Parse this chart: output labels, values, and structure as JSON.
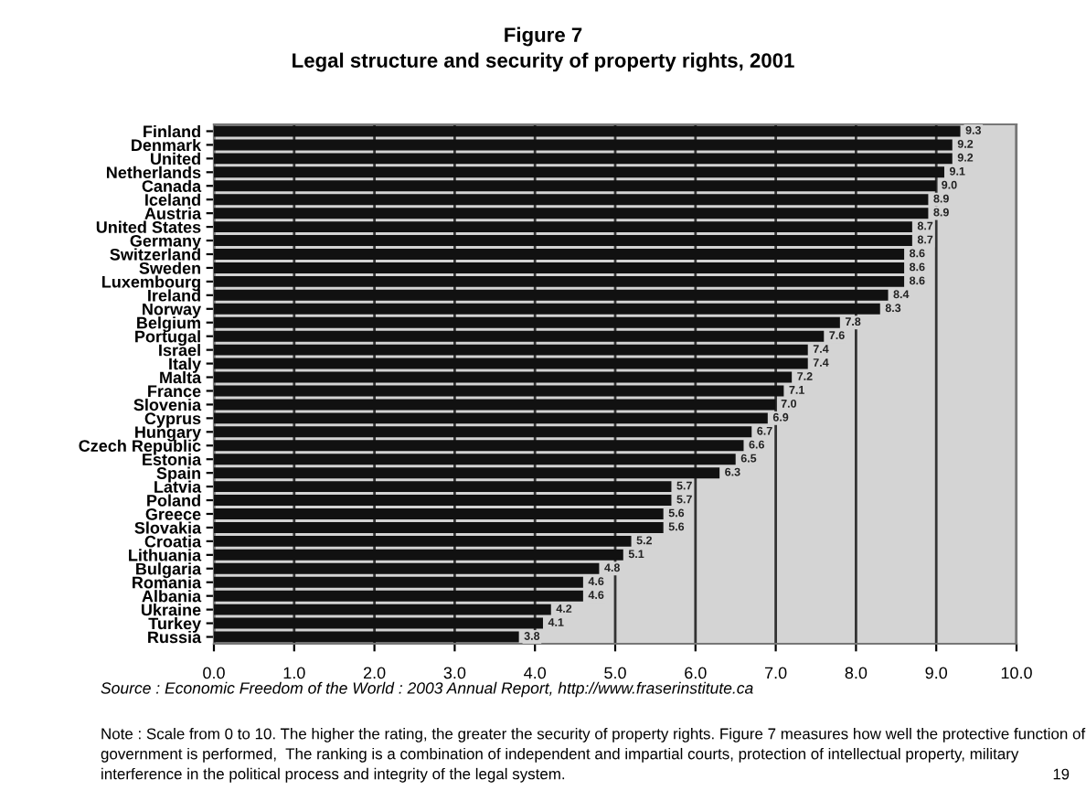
{
  "chart_data": {
    "type": "bar",
    "orientation": "horizontal",
    "title": "Figure 7",
    "subtitle": "Legal structure and security of property rights, 2001",
    "categories": [
      "Finland",
      "Denmark",
      "United",
      "Netherlands",
      "Canada",
      "Iceland",
      "Austria",
      "United States",
      "Germany",
      "Switzerland",
      "Sweden",
      "Luxembourg",
      "Ireland",
      "Norway",
      "Belgium",
      "Portugal",
      "Israel",
      "Italy",
      "Malta",
      "France",
      "Slovenia",
      "Cyprus",
      "Hungary",
      "Czech Republic",
      "Estonia",
      "Spain",
      "Latvia",
      "Poland",
      "Greece",
      "Slovakia",
      "Croatia",
      "Lithuania",
      "Bulgaria",
      "Romania",
      "Albania",
      "Ukraine",
      "Turkey",
      "Russia"
    ],
    "values": [
      9.3,
      9.2,
      9.2,
      9.1,
      9.0,
      8.9,
      8.9,
      8.7,
      8.7,
      8.6,
      8.6,
      8.6,
      8.4,
      8.3,
      7.8,
      7.6,
      7.4,
      7.4,
      7.2,
      7.1,
      7.0,
      6.9,
      6.7,
      6.6,
      6.5,
      6.3,
      5.7,
      5.7,
      5.6,
      5.6,
      5.2,
      5.1,
      4.8,
      4.6,
      4.6,
      4.2,
      4.1,
      3.8
    ],
    "value_labels": [
      "9.3",
      "9.2",
      "9.2",
      "9.1",
      "9.0",
      "8.9",
      "8.9",
      "8.7",
      "8.7",
      "8.6",
      "8.6",
      "8.6",
      "8.4",
      "8.3",
      "7.8",
      "7.6",
      "7.4",
      "7.4",
      "7.2",
      "7.1",
      "7.0",
      "6.9",
      "6.7",
      "6.6",
      "6.5",
      "6.3",
      "5.7",
      "5.7",
      "5.6",
      "5.6",
      "5.2",
      "5.1",
      "4.8",
      "4.6",
      "4.6",
      "4.2",
      "4.1",
      "3.8"
    ],
    "color": "#111111",
    "xlim": [
      0,
      10
    ],
    "xticks": [
      {
        "value": 0,
        "label": "0.0"
      },
      {
        "value": 1,
        "label": "1.0"
      },
      {
        "value": 2,
        "label": "2.0"
      },
      {
        "value": 3,
        "label": "3.0"
      },
      {
        "value": 4,
        "label": "4.0"
      },
      {
        "value": 5,
        "label": "5.0"
      },
      {
        "value": 6,
        "label": "6.0"
      },
      {
        "value": 7,
        "label": "7.0"
      },
      {
        "value": 8,
        "label": "8.0"
      },
      {
        "value": 9,
        "label": "9.0"
      },
      {
        "value": 10,
        "label": "10.0"
      }
    ],
    "grid": "x",
    "annotations": [
      "Source : Economic Freedom of the World : 2003 Annual Report, http://www.fraserinstitute.ca",
      "Note : Scale from 0 to 10. The higher the rating, the greater the security of property rights. Figure 7 measures how well the protective function of government is performed,  The ranking is a combination of independent and impartial courts, protection of intellectual property, military interference in the political process and integrity of the legal system.",
      "19"
    ]
  }
}
